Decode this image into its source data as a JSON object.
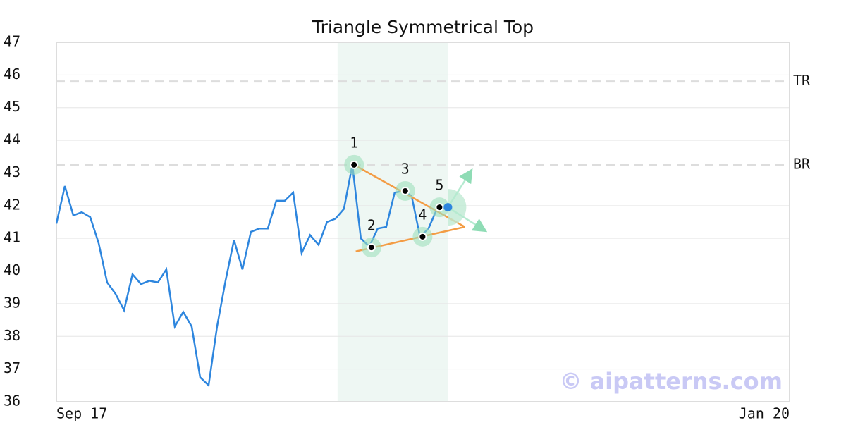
{
  "chart_data": {
    "type": "line",
    "title": "Triangle Symmetrical Top",
    "watermark": "© aipatterns.com",
    "x": [
      0,
      1,
      2,
      3,
      4,
      5,
      6,
      7,
      8,
      9,
      10,
      11,
      12,
      13,
      14,
      15,
      16,
      17,
      18,
      19,
      20,
      21,
      22,
      23,
      24,
      25,
      26,
      27,
      28,
      29,
      30,
      31,
      32,
      33,
      34,
      35,
      36,
      37,
      38,
      39,
      40,
      41,
      42,
      43,
      44,
      45,
      46
    ],
    "series": [
      {
        "color": "#2e86de",
        "values": [
          41.45,
          42.6,
          41.7,
          41.8,
          41.65,
          40.85,
          39.65,
          39.3,
          38.8,
          39.9,
          39.6,
          39.7,
          39.65,
          40.05,
          38.3,
          38.75,
          38.3,
          36.75,
          36.5,
          38.3,
          39.7,
          40.95,
          40.05,
          41.2,
          41.3,
          41.3,
          42.15,
          42.15,
          42.4,
          40.55,
          41.1,
          40.8,
          41.5,
          41.6,
          41.9,
          43.25,
          41.0,
          40.75,
          41.3,
          41.35,
          42.4,
          42.45,
          42.3,
          41.05,
          41.3,
          41.9,
          41.95
        ]
      }
    ],
    "xlim": [
      0,
      86.7
    ],
    "xticks": [
      {
        "value": 0,
        "label": "Sep 17"
      },
      {
        "value": 86.7,
        "label": "Jan 20"
      }
    ],
    "ylim": [
      36,
      47
    ],
    "yticks": [
      36,
      37,
      38,
      39,
      40,
      41,
      42,
      43,
      44,
      45,
      46,
      47
    ],
    "grid": true,
    "highlight_range": [
      33.25,
      46.33
    ],
    "levels": [
      {
        "label": "TR",
        "value": 45.8
      },
      {
        "label": "BR",
        "value": 43.25
      }
    ],
    "trendlines": [
      {
        "color": "#f39c44",
        "x": [
          35.2,
          48.3
        ],
        "y": [
          43.25,
          41.35
        ]
      },
      {
        "color": "#f39c44",
        "x": [
          35.4,
          48.3
        ],
        "y": [
          40.6,
          41.35
        ]
      }
    ],
    "pattern_points": [
      {
        "label": "1",
        "x": 35.2,
        "y": 43.25
      },
      {
        "label": "2",
        "x": 37.25,
        "y": 40.72
      },
      {
        "label": "3",
        "x": 41.25,
        "y": 42.45
      },
      {
        "label": "4",
        "x": 43.3,
        "y": 41.05
      },
      {
        "label": "5",
        "x": 45.3,
        "y": 41.95
      }
    ],
    "projection": {
      "x": 46.3,
      "y": 41.95,
      "color": "#2e86de",
      "arrows": [
        {
          "x": 49,
          "y": 43.05
        },
        {
          "x": 50.6,
          "y": 41.25
        }
      ]
    }
  }
}
